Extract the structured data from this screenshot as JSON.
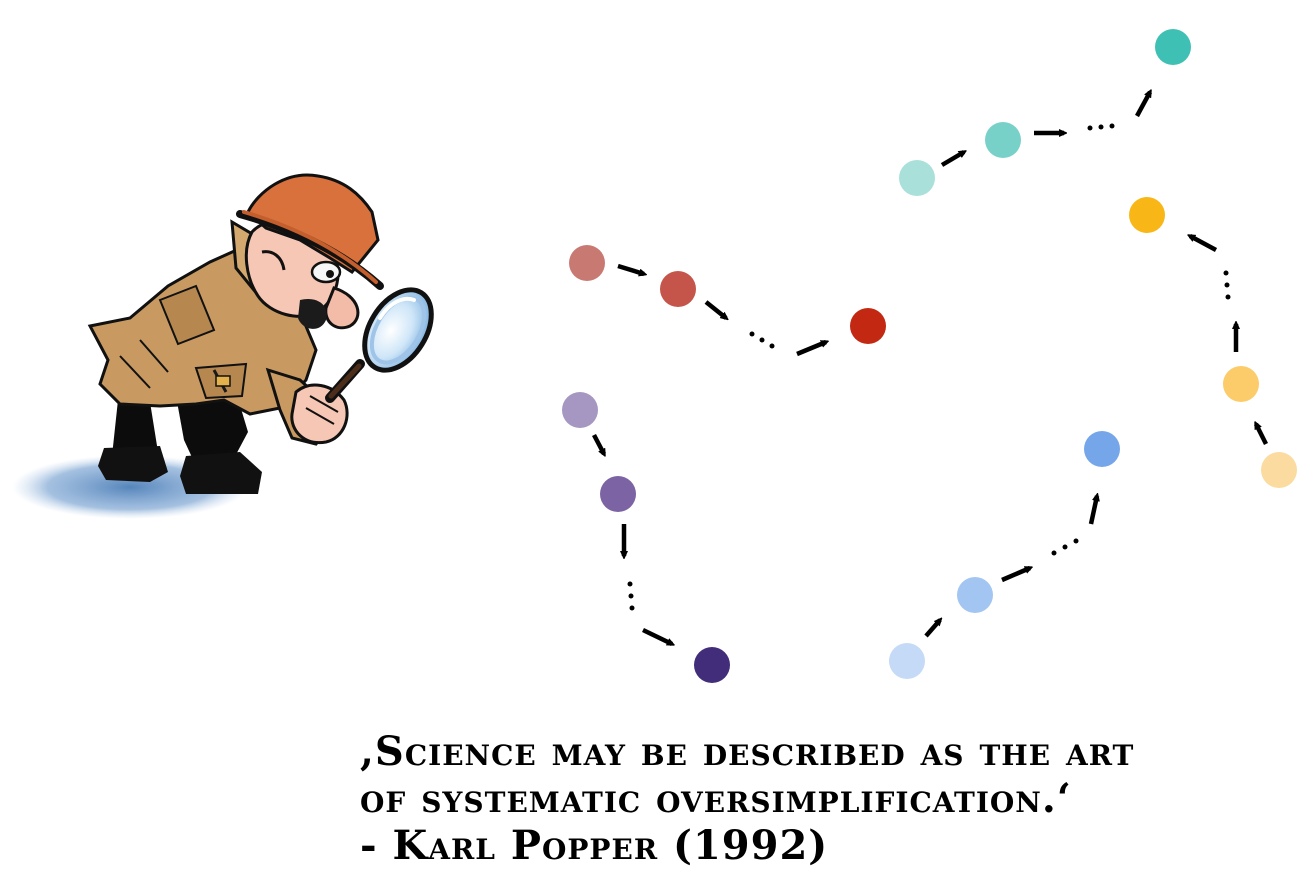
{
  "quote": {
    "line1": ",Science may be described as the art",
    "line2": "of systematic oversimplification.‘",
    "attribution": "- Karl Popper (1992)"
  },
  "illustration": {
    "figure": "detective-with-magnifying-glass",
    "icon": "magnifying-glass-icon"
  },
  "trajectories": [
    {
      "name": "red",
      "colors": [
        "#c87a72",
        "#c5554a",
        "#c22812"
      ],
      "steps": 3
    },
    {
      "name": "teal",
      "colors": [
        "#a9e0da",
        "#78d1c8",
        "#3ec1b4"
      ],
      "steps": 3
    },
    {
      "name": "purple",
      "colors": [
        "#a597c1",
        "#7c64a4",
        "#422d7a"
      ],
      "steps": 3
    },
    {
      "name": "blue",
      "colors": [
        "#c5daf6",
        "#a3c5f2",
        "#76a6ea"
      ],
      "steps": 3
    },
    {
      "name": "orange",
      "colors": [
        "#fbdb9f",
        "#fccb6a",
        "#f8b716"
      ],
      "steps": 3
    }
  ]
}
